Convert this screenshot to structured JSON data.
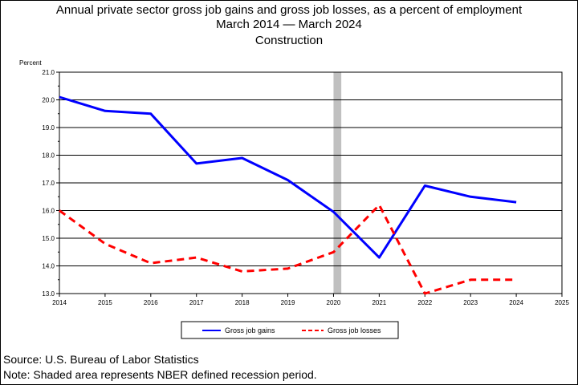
{
  "chart_data": {
    "type": "line",
    "title": "Annual private sector gross job gains and gross job losses, as a percent of employment",
    "subtitle_lines": [
      "March 2014 — March 2024",
      "Construction"
    ],
    "ylabel": "Percent",
    "xlabel": "",
    "x_ticks": [
      "2014",
      "2015",
      "2016",
      "2017",
      "2018",
      "2019",
      "2020",
      "2021",
      "2022",
      "2023",
      "2024",
      "2025"
    ],
    "xlim": [
      2014,
      2025
    ],
    "ylim": [
      13.0,
      21.0
    ],
    "y_ticks": [
      "13.0",
      "14.0",
      "15.0",
      "16.0",
      "17.0",
      "18.0",
      "19.0",
      "20.0",
      "21.0"
    ],
    "grid": "horizontal",
    "recession_shading": {
      "start": 2020.0,
      "end": 2020.17,
      "color": "#c0c0c0"
    },
    "legend_placement": "bottom-center",
    "series": [
      {
        "name": "Gross job gains",
        "color": "#0000ff",
        "style": "solid",
        "x": [
          2014,
          2015,
          2016,
          2017,
          2018,
          2019,
          2020,
          2021,
          2022,
          2023,
          2024
        ],
        "values": [
          20.1,
          19.6,
          19.5,
          17.7,
          17.9,
          17.1,
          15.95,
          14.3,
          16.9,
          16.5,
          16.3
        ]
      },
      {
        "name": "Gross job losses",
        "color": "#ff0000",
        "style": "dashed",
        "x": [
          2014,
          2015,
          2016,
          2017,
          2018,
          2019,
          2020,
          2021,
          2022,
          2023,
          2024
        ],
        "values": [
          16.0,
          14.8,
          14.1,
          14.3,
          13.8,
          13.9,
          14.5,
          16.2,
          13.0,
          13.5,
          13.5
        ]
      }
    ]
  },
  "footer": {
    "source": "Source: U.S. Bureau of Labor Statistics",
    "note": "Note: Shaded area represents NBER defined recession period."
  }
}
